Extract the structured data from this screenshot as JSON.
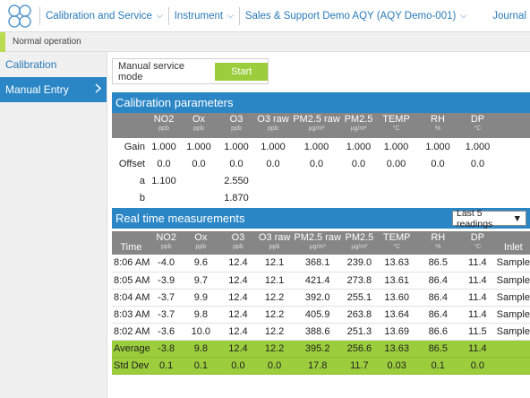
{
  "nav": {
    "items": [
      "Calibration and Service",
      "Instrument",
      "Sales & Support Demo AQY (AQY Demo-001)"
    ],
    "right": "Journal"
  },
  "status": {
    "text": "Normal operation",
    "color": "#b9db4f"
  },
  "sidebar": {
    "items": [
      {
        "label": "Calibration",
        "active": false
      },
      {
        "label": "Manual Entry",
        "active": true
      }
    ]
  },
  "service": {
    "label": "Manual service mode",
    "button": "Start"
  },
  "calibration": {
    "title": "Calibration parameters",
    "columns": [
      {
        "name": "NO2",
        "unit": "ppb"
      },
      {
        "name": "Ox",
        "unit": "ppb"
      },
      {
        "name": "O3",
        "unit": "ppb"
      },
      {
        "name": "O3 raw",
        "unit": "ppb"
      },
      {
        "name": "PM2.5 raw",
        "unit": "µg/m³"
      },
      {
        "name": "PM2.5",
        "unit": "µg/m³"
      },
      {
        "name": "TEMP",
        "unit": "°C"
      },
      {
        "name": "RH",
        "unit": "%"
      },
      {
        "name": "DP",
        "unit": "°C"
      }
    ],
    "rows": [
      {
        "label": "Gain",
        "values": [
          "1.000",
          "1.000",
          "1.000",
          "1.000",
          "1.000",
          "1.000",
          "1.000",
          "1.000",
          "1.000"
        ]
      },
      {
        "label": "Offset",
        "values": [
          "0.0",
          "0.0",
          "0.0",
          "0.0",
          "0.0",
          "0.0",
          "0.00",
          "0.0",
          "0.0"
        ]
      },
      {
        "label": "a",
        "values": [
          "1.100",
          "",
          "2.550",
          "",
          "",
          "",
          "",
          "",
          ""
        ]
      },
      {
        "label": "b",
        "values": [
          "",
          "",
          "1.870",
          "",
          "",
          "",
          "",
          "",
          ""
        ]
      }
    ]
  },
  "realtime": {
    "title": "Real time measurements",
    "select": "Last 5 readings",
    "time_header": "Time",
    "inlet_header": "Inlet",
    "columns": [
      {
        "name": "NO2",
        "unit": "ppb"
      },
      {
        "name": "Ox",
        "unit": "ppb"
      },
      {
        "name": "O3",
        "unit": "ppb"
      },
      {
        "name": "O3 raw",
        "unit": "ppb"
      },
      {
        "name": "PM2.5 raw",
        "unit": "µg/m³"
      },
      {
        "name": "PM2.5",
        "unit": "µg/m³"
      },
      {
        "name": "TEMP",
        "unit": "°C"
      },
      {
        "name": "RH",
        "unit": "%"
      },
      {
        "name": "DP",
        "unit": "°C"
      }
    ],
    "rows": [
      {
        "time": "8:06 AM",
        "values": [
          "-4.0",
          "9.6",
          "12.4",
          "12.1",
          "368.1",
          "239.0",
          "13.63",
          "86.5",
          "11.4"
        ],
        "inlet": "Sample"
      },
      {
        "time": "8:05 AM",
        "values": [
          "-3.9",
          "9.7",
          "12.4",
          "12.1",
          "421.4",
          "273.8",
          "13.61",
          "86.4",
          "11.4"
        ],
        "inlet": "Sample"
      },
      {
        "time": "8:04 AM",
        "values": [
          "-3.7",
          "9.9",
          "12.4",
          "12.2",
          "392.0",
          "255.1",
          "13.60",
          "86.4",
          "11.4"
        ],
        "inlet": "Sample"
      },
      {
        "time": "8:03 AM",
        "values": [
          "-3.7",
          "9.8",
          "12.4",
          "12.2",
          "405.9",
          "263.8",
          "13.64",
          "86.4",
          "11.4"
        ],
        "inlet": "Sample"
      },
      {
        "time": "8:02 AM",
        "values": [
          "-3.6",
          "10.0",
          "12.4",
          "12.2",
          "388.6",
          "251.3",
          "13.69",
          "86.6",
          "11.5"
        ],
        "inlet": "Sample"
      }
    ],
    "stats": [
      {
        "label": "Average",
        "values": [
          "-3.8",
          "9.8",
          "12.4",
          "12.2",
          "395.2",
          "256.6",
          "13.63",
          "86.5",
          "11.4"
        ]
      },
      {
        "label": "Std Dev",
        "values": [
          "0.1",
          "0.1",
          "0.0",
          "0.0",
          "17.8",
          "11.7",
          "0.03",
          "0.1",
          "0.0"
        ]
      }
    ]
  }
}
